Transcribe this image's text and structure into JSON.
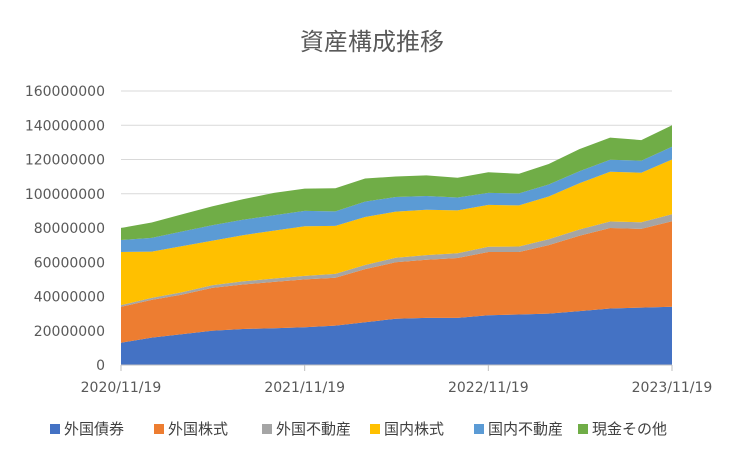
{
  "chart_data": {
    "type": "area",
    "stacked": true,
    "title": "資産構成推移",
    "xlabel": "",
    "ylabel": "",
    "x_start": "2020/11/19",
    "x_end": "2023/11/19",
    "xticks": [
      "2020/11/19",
      "2021/11/19",
      "2022/11/19",
      "2023/11/19"
    ],
    "ylim": [
      0,
      160000000
    ],
    "yticks": [
      0,
      20000000,
      40000000,
      60000000,
      80000000,
      100000000,
      120000000,
      140000000,
      160000000
    ],
    "yticks_labels": [
      "0",
      "20000000",
      "40000000",
      "60000000",
      "80000000",
      "100000000",
      "120000000",
      "140000000",
      "160000000"
    ],
    "grid": "horizontal",
    "legend_position": "bottom",
    "x": [
      "2020/11/19",
      "2021/01/19",
      "2021/03/19",
      "2021/05/19",
      "2021/07/19",
      "2021/09/19",
      "2021/11/19",
      "2022/01/19",
      "2022/03/19",
      "2022/05/19",
      "2022/07/19",
      "2022/09/19",
      "2022/11/19",
      "2023/01/19",
      "2023/03/19",
      "2023/05/19",
      "2023/07/19",
      "2023/09/19",
      "2023/11/19"
    ],
    "series": [
      {
        "name": "外国債券",
        "color": "#4472C4",
        "values": [
          13000000,
          16000000,
          18000000,
          20000000,
          21000000,
          21500000,
          22000000,
          23000000,
          25000000,
          27000000,
          27500000,
          27500000,
          29000000,
          29500000,
          30000000,
          31500000,
          33000000,
          33500000,
          34000000
        ]
      },
      {
        "name": "外国株式",
        "color": "#ED7D31",
        "values": [
          21000000,
          22000000,
          23000000,
          25000000,
          26000000,
          27000000,
          28000000,
          28000000,
          31000000,
          33000000,
          34000000,
          35000000,
          37000000,
          36500000,
          40000000,
          44000000,
          47000000,
          46000000,
          50000000
        ]
      },
      {
        "name": "外国不動産",
        "color": "#A5A5A5",
        "values": [
          1000000,
          1200000,
          1400000,
          1600000,
          1800000,
          2000000,
          2000000,
          2200000,
          2400000,
          2600000,
          2700000,
          2800000,
          3000000,
          3200000,
          3400000,
          3600000,
          3800000,
          3800000,
          4000000
        ]
      },
      {
        "name": "国内株式",
        "color": "#FFC000",
        "values": [
          31000000,
          27000000,
          27000000,
          26000000,
          27000000,
          28000000,
          29000000,
          28000000,
          28000000,
          27000000,
          26500000,
          25000000,
          24500000,
          24000000,
          25000000,
          27000000,
          29000000,
          29000000,
          32000000
        ]
      },
      {
        "name": "国内不動産",
        "color": "#5B9BD5",
        "values": [
          7000000,
          8000000,
          8500000,
          9000000,
          9000000,
          9000000,
          9000000,
          8500000,
          9000000,
          8500000,
          8000000,
          7500000,
          7000000,
          7000000,
          7000000,
          7000000,
          7000000,
          7000000,
          7500000
        ]
      },
      {
        "name": "現金その他",
        "color": "#70AD47",
        "values": [
          7000000,
          9000000,
          10000000,
          11000000,
          12000000,
          13000000,
          13000000,
          13500000,
          13500000,
          12000000,
          12000000,
          11500000,
          12000000,
          11500000,
          12000000,
          13000000,
          13000000,
          12000000,
          12500000
        ]
      }
    ]
  }
}
